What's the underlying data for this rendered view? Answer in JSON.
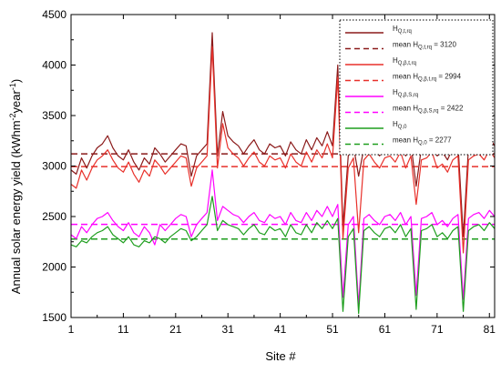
{
  "chart_data": {
    "type": "line",
    "xlabel": "Site #",
    "ylabel_main": "Annual solar energy yield (kWhm",
    "ylabel_sup1": "-2",
    "ylabel_mid": "year",
    "ylabel_sup2": "-1",
    "ylabel_end": ")",
    "xlim": [
      1,
      82
    ],
    "ylim": [
      1500,
      4500
    ],
    "xticks": [
      "1",
      "11",
      "21",
      "31",
      "41",
      "51",
      "61",
      "71",
      "81"
    ],
    "yticks": [
      "1500",
      "2000",
      "2500",
      "3000",
      "3500",
      "4000",
      "4500"
    ],
    "grid": false,
    "legend_position": "top-right",
    "legend": [
      {
        "label": "H",
        "sub": "Q,t,rq",
        "rest": "",
        "style": "solid",
        "color": "#8b1a1a"
      },
      {
        "label": "mean H",
        "sub": "Q,t,rq",
        "rest": " = 3120",
        "style": "dashed",
        "color": "#8b1a1a"
      },
      {
        "label": "H",
        "sub": "Q,β,t,rq",
        "rest": "",
        "style": "solid",
        "color": "#e8302a"
      },
      {
        "label": "mean H",
        "sub": "Q,β,t,rq",
        "rest": " = 2994",
        "style": "dashed",
        "color": "#e8302a"
      },
      {
        "label": "H",
        "sub": "Q,β,S,rq",
        "rest": "",
        "style": "solid",
        "color": "#ff00ff"
      },
      {
        "label": "mean H",
        "sub": "Q,β,S,rq",
        "rest": " = 2422",
        "style": "dashed",
        "color": "#ff00ff"
      },
      {
        "label": "H",
        "sub": "Q,0",
        "rest": "",
        "style": "solid",
        "color": "#1e9e1e"
      },
      {
        "label": "mean H",
        "sub": "Q,0",
        "rest": " = 2277",
        "style": "dashed",
        "color": "#1e9e1e"
      }
    ],
    "series": [
      {
        "name": "HQ,t,rq",
        "color": "#8b1a1a",
        "style": "solid",
        "mean": 3120,
        "x": [
          1,
          2,
          3,
          4,
          5,
          6,
          7,
          8,
          9,
          10,
          11,
          12,
          13,
          14,
          15,
          16,
          17,
          18,
          19,
          20,
          21,
          22,
          23,
          24,
          25,
          26,
          27,
          28,
          29,
          30,
          31,
          32,
          33,
          34,
          35,
          36,
          37,
          38,
          39,
          40,
          41,
          42,
          43,
          44,
          45,
          46,
          47,
          48,
          49,
          50,
          51,
          52,
          53,
          54,
          55,
          56,
          57,
          58,
          59,
          60,
          61,
          62,
          63,
          64,
          65,
          66,
          67,
          68,
          69,
          70,
          71,
          72,
          73,
          74,
          75,
          76,
          77,
          78,
          79,
          80,
          81,
          82
        ],
        "values": [
          2960,
          2920,
          3080,
          2980,
          3100,
          3180,
          3220,
          3300,
          3180,
          3100,
          3060,
          3160,
          3040,
          2960,
          3080,
          3020,
          3180,
          3120,
          3040,
          3100,
          3160,
          3220,
          3200,
          2900,
          3100,
          3160,
          3220,
          4320,
          3100,
          3540,
          3300,
          3240,
          3200,
          3120,
          3200,
          3260,
          3160,
          3120,
          3220,
          3180,
          3200,
          3100,
          3240,
          3160,
          3120,
          3260,
          3160,
          3280,
          3200,
          3340,
          3200,
          4000,
          2400,
          3100,
          3200,
          2900,
          3180,
          3240,
          3160,
          3100,
          3200,
          3220,
          3160,
          3260,
          3100,
          3220,
          2800,
          3180,
          3200,
          3260,
          3100,
          3140,
          3060,
          3180,
          3220,
          2300,
          3180,
          3220,
          3240,
          3180,
          3280,
          3200
        ]
      },
      {
        "name": "HQ,β,t,rq",
        "color": "#e8302a",
        "style": "solid",
        "mean": 2994,
        "x": [
          1,
          2,
          3,
          4,
          5,
          6,
          7,
          8,
          9,
          10,
          11,
          12,
          13,
          14,
          15,
          16,
          17,
          18,
          19,
          20,
          21,
          22,
          23,
          24,
          25,
          26,
          27,
          28,
          29,
          30,
          31,
          32,
          33,
          34,
          35,
          36,
          37,
          38,
          39,
          40,
          41,
          42,
          43,
          44,
          45,
          46,
          47,
          48,
          49,
          50,
          51,
          52,
          53,
          54,
          55,
          56,
          57,
          58,
          59,
          60,
          61,
          62,
          63,
          64,
          65,
          66,
          67,
          68,
          69,
          70,
          71,
          72,
          73,
          74,
          75,
          76,
          77,
          78,
          79,
          80,
          81,
          82
        ],
        "values": [
          2820,
          2780,
          2960,
          2860,
          2980,
          3060,
          3100,
          3160,
          3060,
          2980,
          2940,
          3040,
          2920,
          2840,
          2960,
          2900,
          3060,
          3000,
          2920,
          2980,
          3040,
          3100,
          3080,
          2800,
          2980,
          3040,
          3100,
          4180,
          2980,
          3420,
          3180,
          3120,
          3080,
          3000,
          3080,
          3140,
          3040,
          3000,
          3100,
          3060,
          3080,
          2980,
          3120,
          3040,
          3000,
          3140,
          3040,
          3160,
          3080,
          3220,
          3080,
          3880,
          2280,
          2980,
          3080,
          2340,
          3060,
          3120,
          3040,
          2980,
          3080,
          3100,
          3040,
          3140,
          2980,
          3100,
          2620,
          3060,
          3080,
          3140,
          2980,
          3020,
          2940,
          3060,
          3100,
          2140,
          3060,
          3100,
          3120,
          3060,
          3160,
          3080
        ]
      },
      {
        "name": "HQ,β,S,rq",
        "color": "#ff00ff",
        "style": "solid",
        "mean": 2422,
        "x": [
          1,
          2,
          3,
          4,
          5,
          6,
          7,
          8,
          9,
          10,
          11,
          12,
          13,
          14,
          15,
          16,
          17,
          18,
          19,
          20,
          21,
          22,
          23,
          24,
          25,
          26,
          27,
          28,
          29,
          30,
          31,
          32,
          33,
          34,
          35,
          36,
          37,
          38,
          39,
          40,
          41,
          42,
          43,
          44,
          45,
          46,
          47,
          48,
          49,
          50,
          51,
          52,
          53,
          54,
          55,
          56,
          57,
          58,
          59,
          60,
          61,
          62,
          63,
          64,
          65,
          66,
          67,
          68,
          69,
          70,
          71,
          72,
          73,
          74,
          75,
          76,
          77,
          78,
          79,
          80,
          81,
          82
        ],
        "values": [
          2320,
          2280,
          2400,
          2340,
          2420,
          2480,
          2500,
          2540,
          2460,
          2400,
          2360,
          2440,
          2340,
          2300,
          2400,
          2340,
          2220,
          2420,
          2360,
          2420,
          2480,
          2520,
          2500,
          2300,
          2420,
          2480,
          2540,
          2960,
          2460,
          2600,
          2560,
          2520,
          2500,
          2440,
          2500,
          2540,
          2460,
          2440,
          2520,
          2480,
          2500,
          2420,
          2540,
          2460,
          2440,
          2540,
          2460,
          2560,
          2500,
          2600,
          2500,
          2620,
          1700,
          2420,
          2500,
          1620,
          2480,
          2520,
          2460,
          2420,
          2500,
          2520,
          2460,
          2540,
          2420,
          2500,
          1720,
          2480,
          2500,
          2540,
          2420,
          2460,
          2400,
          2480,
          2520,
          1680,
          2480,
          2520,
          2540,
          2480,
          2560,
          2500
        ]
      },
      {
        "name": "HQ,0",
        "color": "#1e9e1e",
        "style": "solid",
        "mean": 2277,
        "x": [
          1,
          2,
          3,
          4,
          5,
          6,
          7,
          8,
          9,
          10,
          11,
          12,
          13,
          14,
          15,
          16,
          17,
          18,
          19,
          20,
          21,
          22,
          23,
          24,
          25,
          26,
          27,
          28,
          29,
          30,
          31,
          32,
          33,
          34,
          35,
          36,
          37,
          38,
          39,
          40,
          41,
          42,
          43,
          44,
          45,
          46,
          47,
          48,
          49,
          50,
          51,
          52,
          53,
          54,
          55,
          56,
          57,
          58,
          59,
          60,
          61,
          62,
          63,
          64,
          65,
          66,
          67,
          68,
          69,
          70,
          71,
          72,
          73,
          74,
          75,
          76,
          77,
          78,
          79,
          80,
          81,
          82
        ],
        "values": [
          2220,
          2200,
          2260,
          2240,
          2300,
          2340,
          2360,
          2400,
          2320,
          2280,
          2240,
          2300,
          2220,
          2200,
          2260,
          2240,
          2300,
          2280,
          2240,
          2300,
          2340,
          2380,
          2360,
          2260,
          2300,
          2360,
          2420,
          2700,
          2360,
          2460,
          2420,
          2400,
          2380,
          2320,
          2380,
          2420,
          2340,
          2320,
          2400,
          2360,
          2380,
          2300,
          2420,
          2340,
          2320,
          2420,
          2340,
          2440,
          2380,
          2460,
          2380,
          2480,
          1560,
          2300,
          2380,
          1540,
          2360,
          2400,
          2340,
          2300,
          2380,
          2400,
          2340,
          2420,
          2300,
          2380,
          1580,
          2360,
          2380,
          2420,
          2300,
          2340,
          2280,
          2360,
          2400,
          1560,
          2360,
          2400,
          2420,
          2360,
          2440,
          2380
        ]
      }
    ]
  }
}
